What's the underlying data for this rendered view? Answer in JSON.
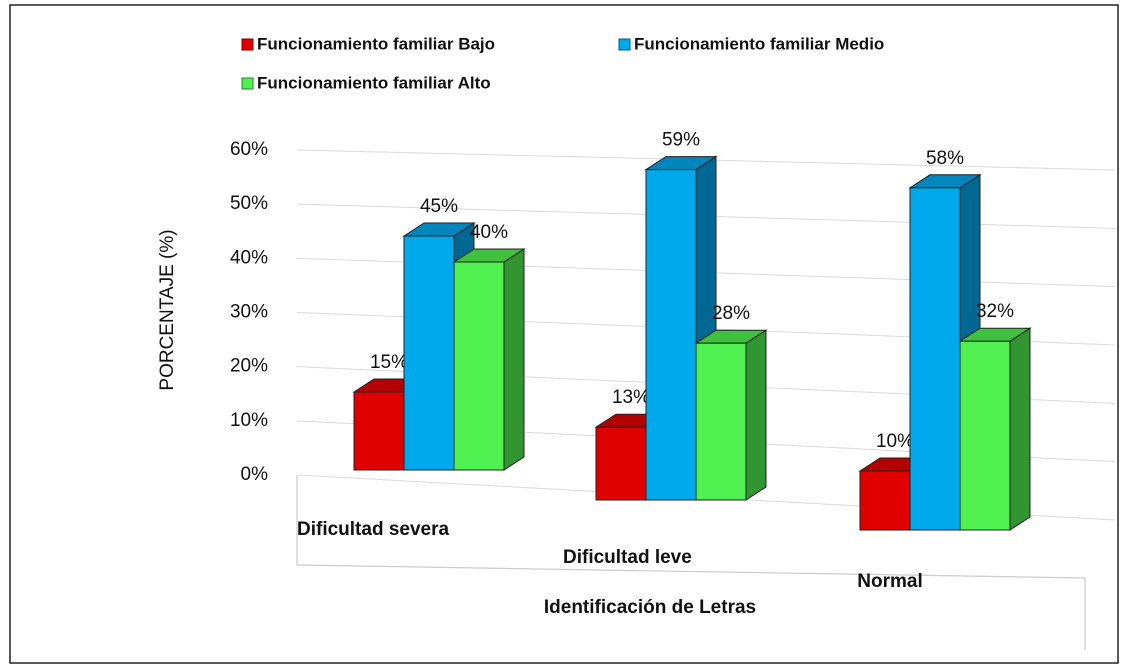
{
  "chart_data": {
    "type": "bar3d",
    "categories": [
      "Dificultad severa",
      "Dificultad leve",
      "Normal"
    ],
    "series": [
      {
        "name": "Funcionamiento familiar Bajo",
        "color": "#e00000",
        "values": [
          15,
          13,
          10
        ],
        "value_labels": [
          "15%",
          "13%",
          "10%"
        ]
      },
      {
        "name": "Funcionamiento familiar Medio",
        "color": "#00a8ec",
        "values": [
          45,
          59,
          58
        ],
        "value_labels": [
          "45%",
          "59%",
          "58%"
        ]
      },
      {
        "name": "Funcionamiento familiar Alto",
        "color": "#4ff04f",
        "values": [
          40,
          28,
          32
        ],
        "value_labels": [
          "40%",
          "28%",
          "32%"
        ]
      }
    ],
    "ylabel": "PORCENTAJE  (%)",
    "xlabel": "Identificación de Letras",
    "ylim": [
      0,
      60
    ],
    "yticks": [
      {
        "value": 0,
        "label": "0%"
      },
      {
        "value": 10,
        "label": "10%"
      },
      {
        "value": 20,
        "label": "20%"
      },
      {
        "value": 30,
        "label": "30%"
      },
      {
        "value": 40,
        "label": "40%"
      },
      {
        "value": 50,
        "label": "50%"
      },
      {
        "value": 60,
        "label": "60%"
      }
    ],
    "grid": true
  }
}
